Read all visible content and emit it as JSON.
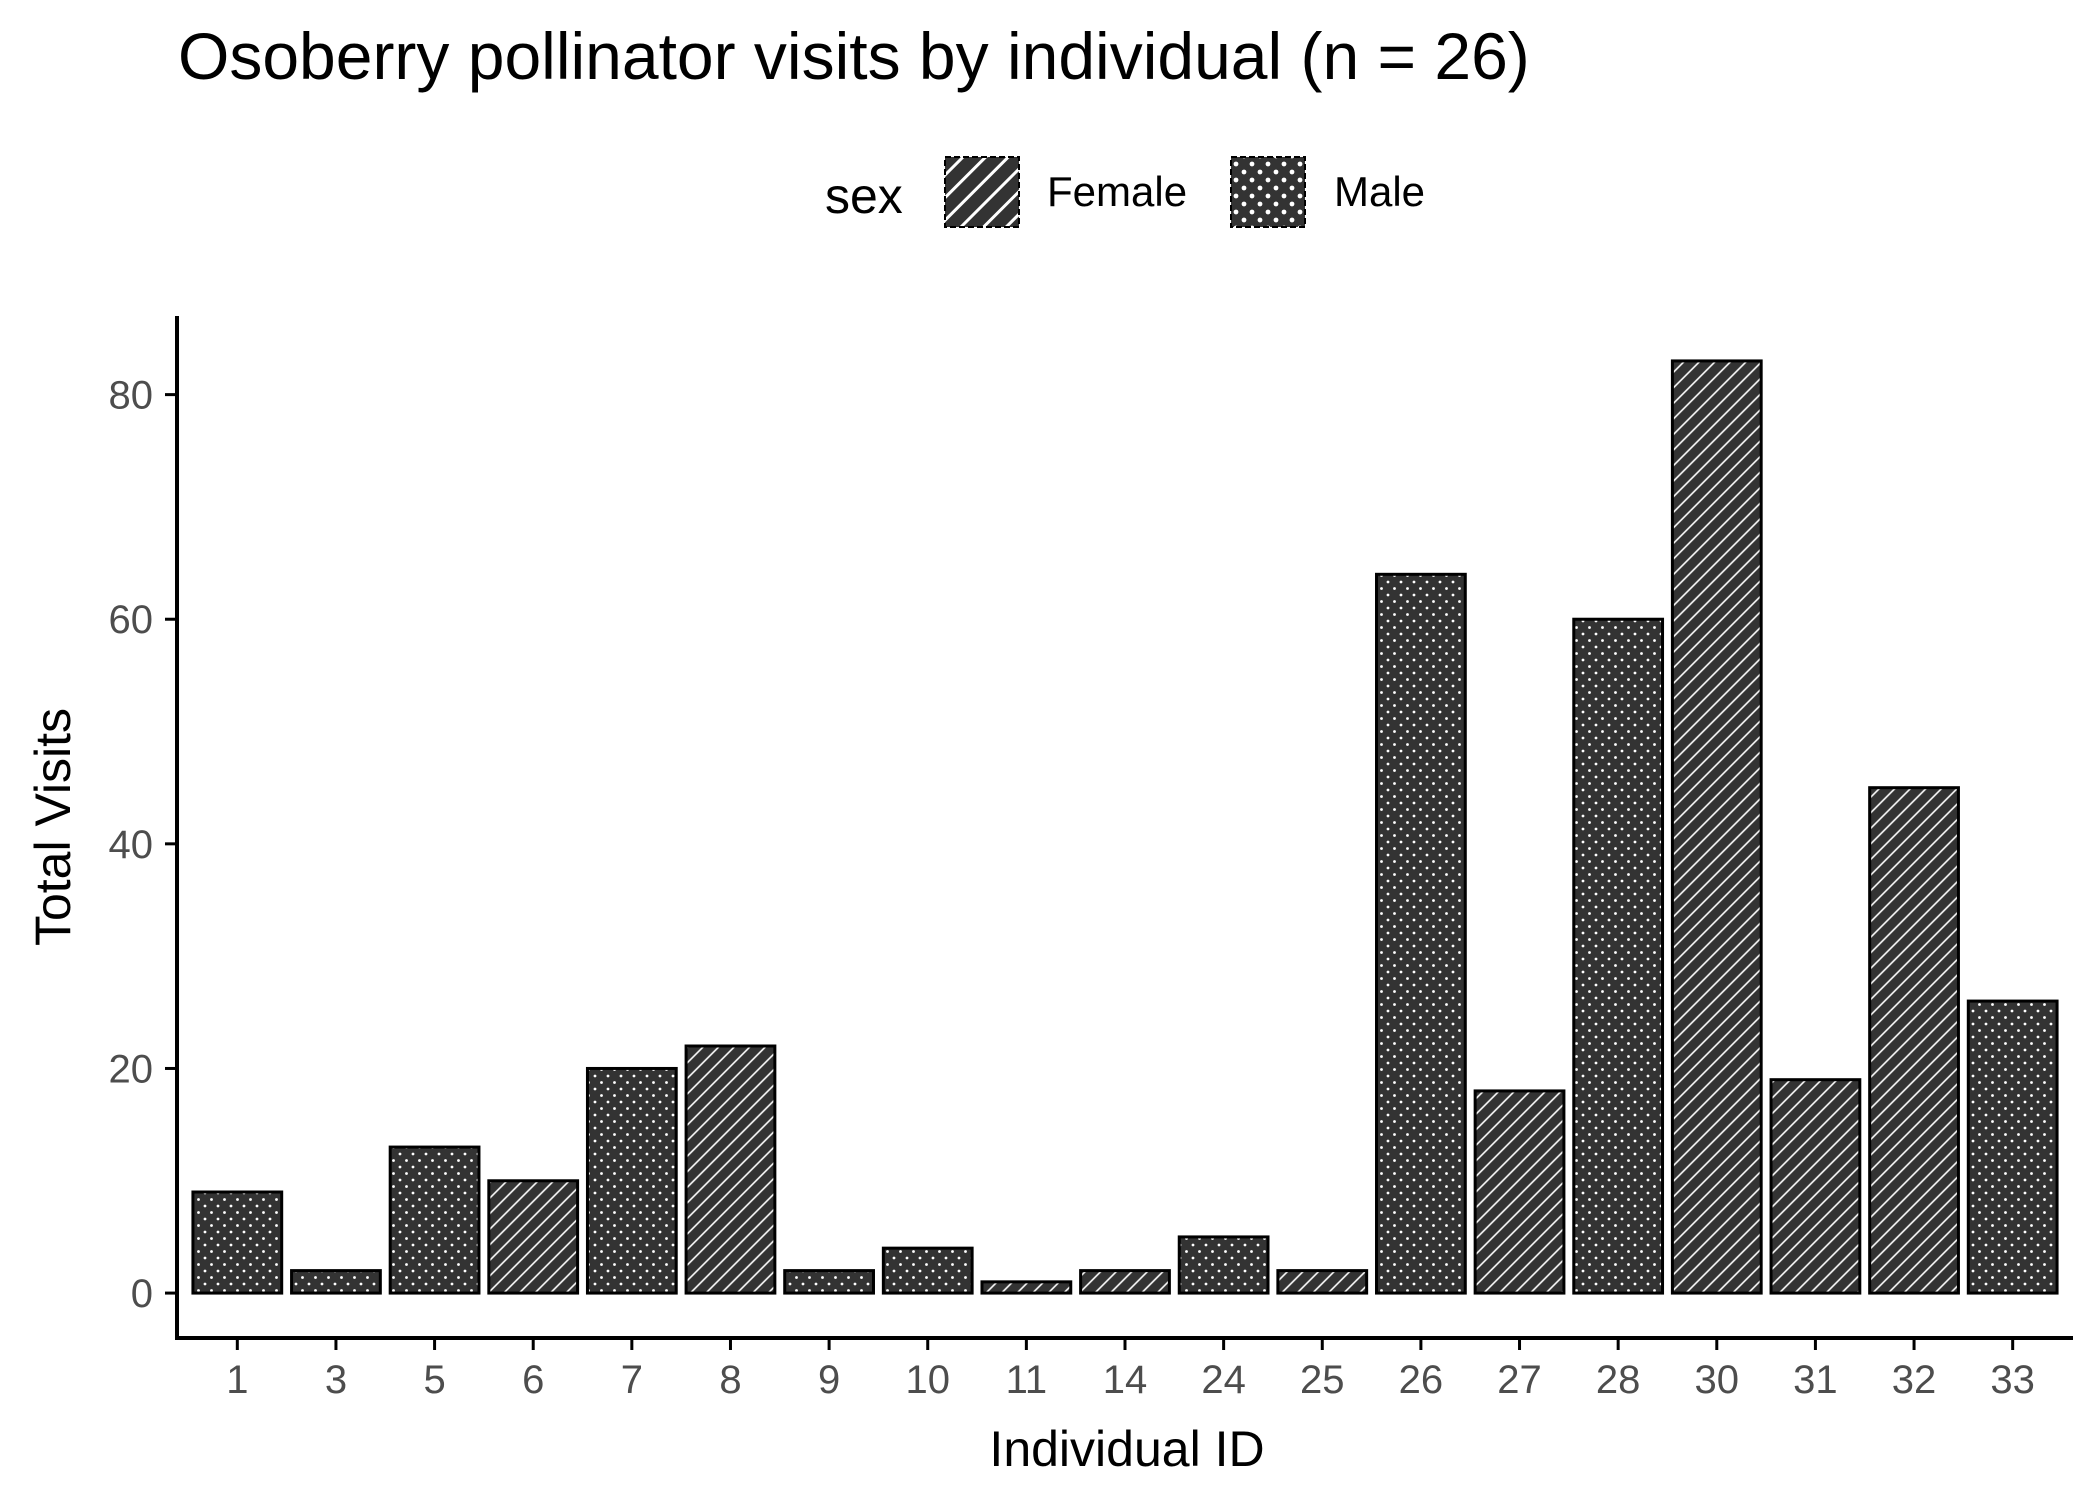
{
  "chart_data": {
    "type": "bar",
    "title": "Osoberry pollinator visits by individual (n = 26)",
    "xlabel": "Individual ID",
    "ylabel": "Total Visits",
    "categories": [
      "1",
      "3",
      "5",
      "6",
      "7",
      "8",
      "9",
      "10",
      "11",
      "14",
      "24",
      "25",
      "26",
      "27",
      "28",
      "30",
      "31",
      "32",
      "33"
    ],
    "values": [
      9,
      2,
      13,
      10,
      20,
      22,
      2,
      4,
      1,
      2,
      5,
      2,
      64,
      18,
      60,
      83,
      19,
      45,
      26
    ],
    "sex": [
      "Male",
      "Male",
      "Male",
      "Female",
      "Male",
      "Female",
      "Male",
      "Male",
      "Female",
      "Female",
      "Male",
      "Female",
      "Male",
      "Female",
      "Male",
      "Female",
      "Female",
      "Female",
      "Male"
    ],
    "ylim": [
      -4,
      87
    ],
    "yticks": [
      0,
      20,
      40,
      60,
      80
    ],
    "grid": false,
    "legend": {
      "title": "sex",
      "placement": "top",
      "entries": [
        {
          "label": "Female",
          "pattern": "stripe"
        },
        {
          "label": "Male",
          "pattern": "dots"
        }
      ]
    },
    "colors": {
      "bar_fill": "#333333",
      "outline": "#000000",
      "pattern": "#ffffff",
      "axis_text": "#4d4d4d"
    }
  }
}
